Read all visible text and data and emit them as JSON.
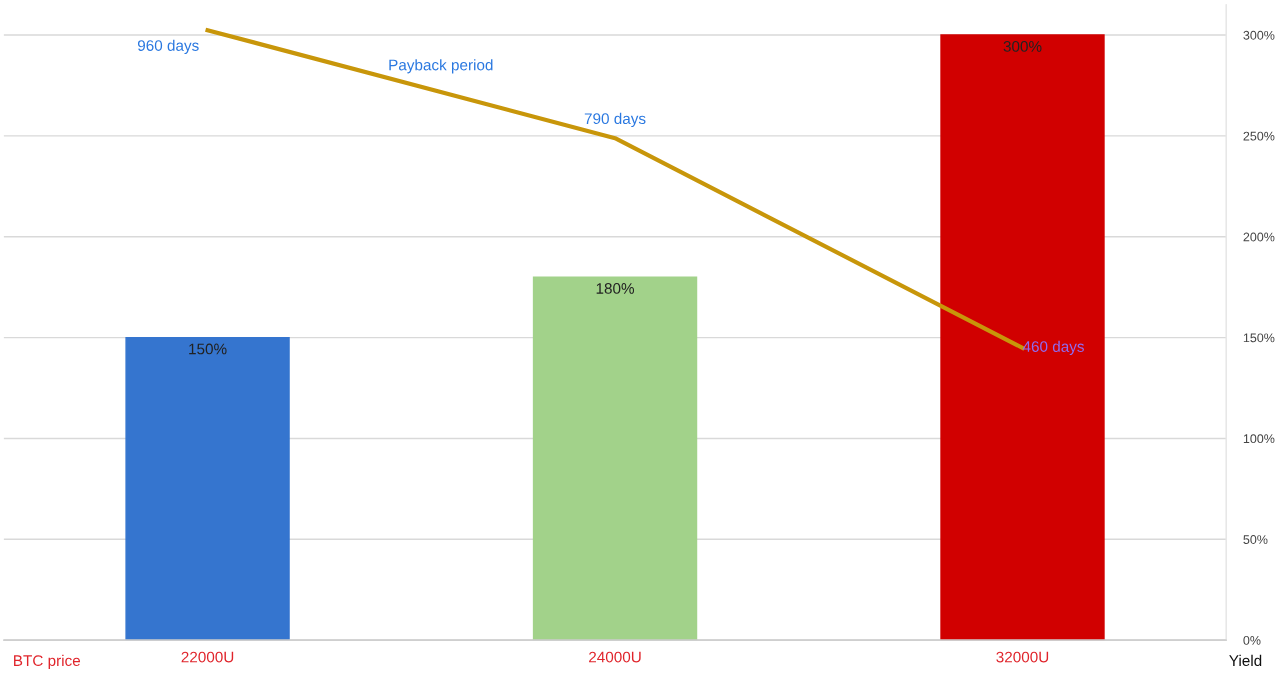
{
  "chart_data": {
    "type": "bar",
    "xlabel": "BTC price",
    "ylabel": "Yield",
    "categories": [
      "22000U",
      "24000U",
      "32000U"
    ],
    "series": [
      {
        "colors": [
          "#3575cf",
          "#a2d28a",
          "#d10000"
        ],
        "values": [
          150,
          180,
          300
        ],
        "value_labels": [
          "150%",
          "180%",
          "300%"
        ]
      },
      {
        "type": "line",
        "name": "Payback period",
        "color": "#c8960a",
        "axis": "y2",
        "values": [
          960,
          790,
          460
        ],
        "value_labels": [
          "960 days",
          "790 days",
          "460 days"
        ]
      }
    ],
    "ylim": [
      0,
      315
    ],
    "yticks": [
      {
        "value": 0,
        "label": "0%"
      },
      {
        "value": 50,
        "label": "50%"
      },
      {
        "value": 100,
        "label": "100%"
      },
      {
        "value": 150,
        "label": "150%"
      },
      {
        "value": 200,
        "label": "200%"
      },
      {
        "value": 250,
        "label": "250%"
      },
      {
        "value": 300,
        "label": "300%"
      }
    ],
    "y2lim": [
      0,
      1000
    ],
    "grid": "y",
    "marker": "none",
    "line_style": "solid"
  }
}
